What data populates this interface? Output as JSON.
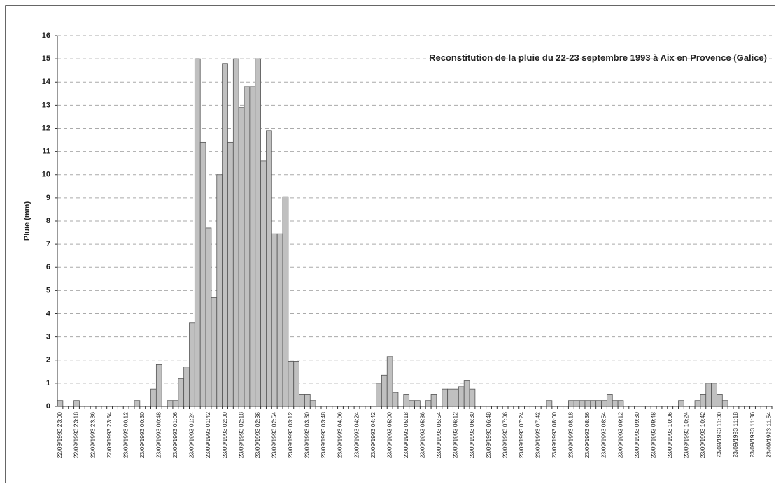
{
  "chart_data": {
    "type": "bar",
    "title": "Reconstitution de la pluie du 22-23 septembre 1993 à Aix en Provence (Galice)",
    "ylabel": "Pluie (mm)",
    "color": "#c0c0c0",
    "grid": true,
    "ylim": [
      0,
      16
    ],
    "yticks": [
      0,
      1,
      2,
      3,
      4,
      5,
      6,
      7,
      8,
      9,
      10,
      11,
      12,
      13,
      14,
      15,
      16
    ],
    "categories": [
      "22/09/1993 23:00",
      null,
      null,
      "22/09/1993 23:18",
      null,
      null,
      "22/09/1993 23:36",
      null,
      null,
      "22/09/1993 23:54",
      null,
      null,
      "23/09/1993 00:12",
      null,
      null,
      "23/09/1993 00:30",
      null,
      null,
      "23/09/1993 00:48",
      null,
      null,
      "23/09/1993 01:06",
      null,
      null,
      "23/09/1993 01:24",
      null,
      null,
      "23/09/1993 01:42",
      null,
      null,
      "23/09/1993 02:00",
      null,
      null,
      "23/09/1993 02:18",
      null,
      null,
      "23/09/1993 02:36",
      null,
      null,
      "23/09/1993 02:54",
      null,
      null,
      "23/09/1993 03:12",
      null,
      null,
      "23/09/1993 03:30",
      null,
      null,
      "23/09/1993 03:48",
      null,
      null,
      "23/09/1993 04:06",
      null,
      null,
      "23/09/1993 04:24",
      null,
      null,
      "23/09/1993 04:42",
      null,
      null,
      "23/09/1993 05:00",
      null,
      null,
      "23/09/1993 05:18",
      null,
      null,
      "23/09/1993 05:36",
      null,
      null,
      "23/09/1993 05:54",
      null,
      null,
      "23/09/1993 06:12",
      null,
      null,
      "23/09/1993 06:30",
      null,
      null,
      "23/09/1993 06:48",
      null,
      null,
      "23/09/1993 07:06",
      null,
      null,
      "23/09/1993 07:24",
      null,
      null,
      "23/09/1993 07:42",
      null,
      null,
      "23/09/1993 08:00",
      null,
      null,
      "23/09/1993 08:18",
      null,
      null,
      "23/09/1993 08:36",
      null,
      null,
      "23/09/1993 08:54",
      null,
      null,
      "23/09/1993 09:12",
      null,
      null,
      "23/09/1993 09:30",
      null,
      null,
      "23/09/1993 09:48",
      null,
      null,
      "23/09/1993 10:06",
      null,
      null,
      "23/09/1993 10:24",
      null,
      null,
      "23/09/1993 10:42",
      null,
      null,
      "23/09/1993 11:00",
      null,
      null,
      "23/09/1993 11:18",
      null,
      null,
      "23/09/1993 11:36",
      null,
      null,
      "23/09/1993 11:54"
    ],
    "values": [
      0.25,
      0,
      0,
      0.25,
      0,
      0,
      0,
      0,
      0,
      0,
      0,
      0,
      0,
      0,
      0.25,
      0,
      0,
      0.75,
      1.8,
      0,
      0.25,
      0.25,
      1.2,
      1.7,
      3.6,
      15,
      11.4,
      7.7,
      4.7,
      10,
      14.8,
      11.4,
      15,
      12.9,
      13.8,
      13.8,
      15,
      10.6,
      11.9,
      7.45,
      7.45,
      9.05,
      1.95,
      1.95,
      0.5,
      0.5,
      0.25,
      0,
      0,
      0,
      0,
      0,
      0,
      0,
      0,
      0,
      0,
      0,
      1,
      1.35,
      2.15,
      0.6,
      0,
      0.5,
      0.25,
      0.25,
      0,
      0.25,
      0.5,
      0,
      0.75,
      0.75,
      0.75,
      0.85,
      1.1,
      0.75,
      0,
      0,
      0,
      0,
      0,
      0,
      0,
      0,
      0,
      0,
      0,
      0,
      0,
      0.25,
      0,
      0,
      0,
      0.25,
      0.25,
      0.25,
      0.25,
      0.25,
      0.25,
      0.25,
      0.5,
      0.25,
      0.25,
      0,
      0,
      0,
      0,
      0,
      0,
      0,
      0,
      0,
      0,
      0.25,
      0,
      0,
      0.25,
      0.5,
      1,
      1,
      0.5,
      0.25,
      0,
      0,
      0,
      0,
      0,
      0,
      0,
      0
    ]
  }
}
